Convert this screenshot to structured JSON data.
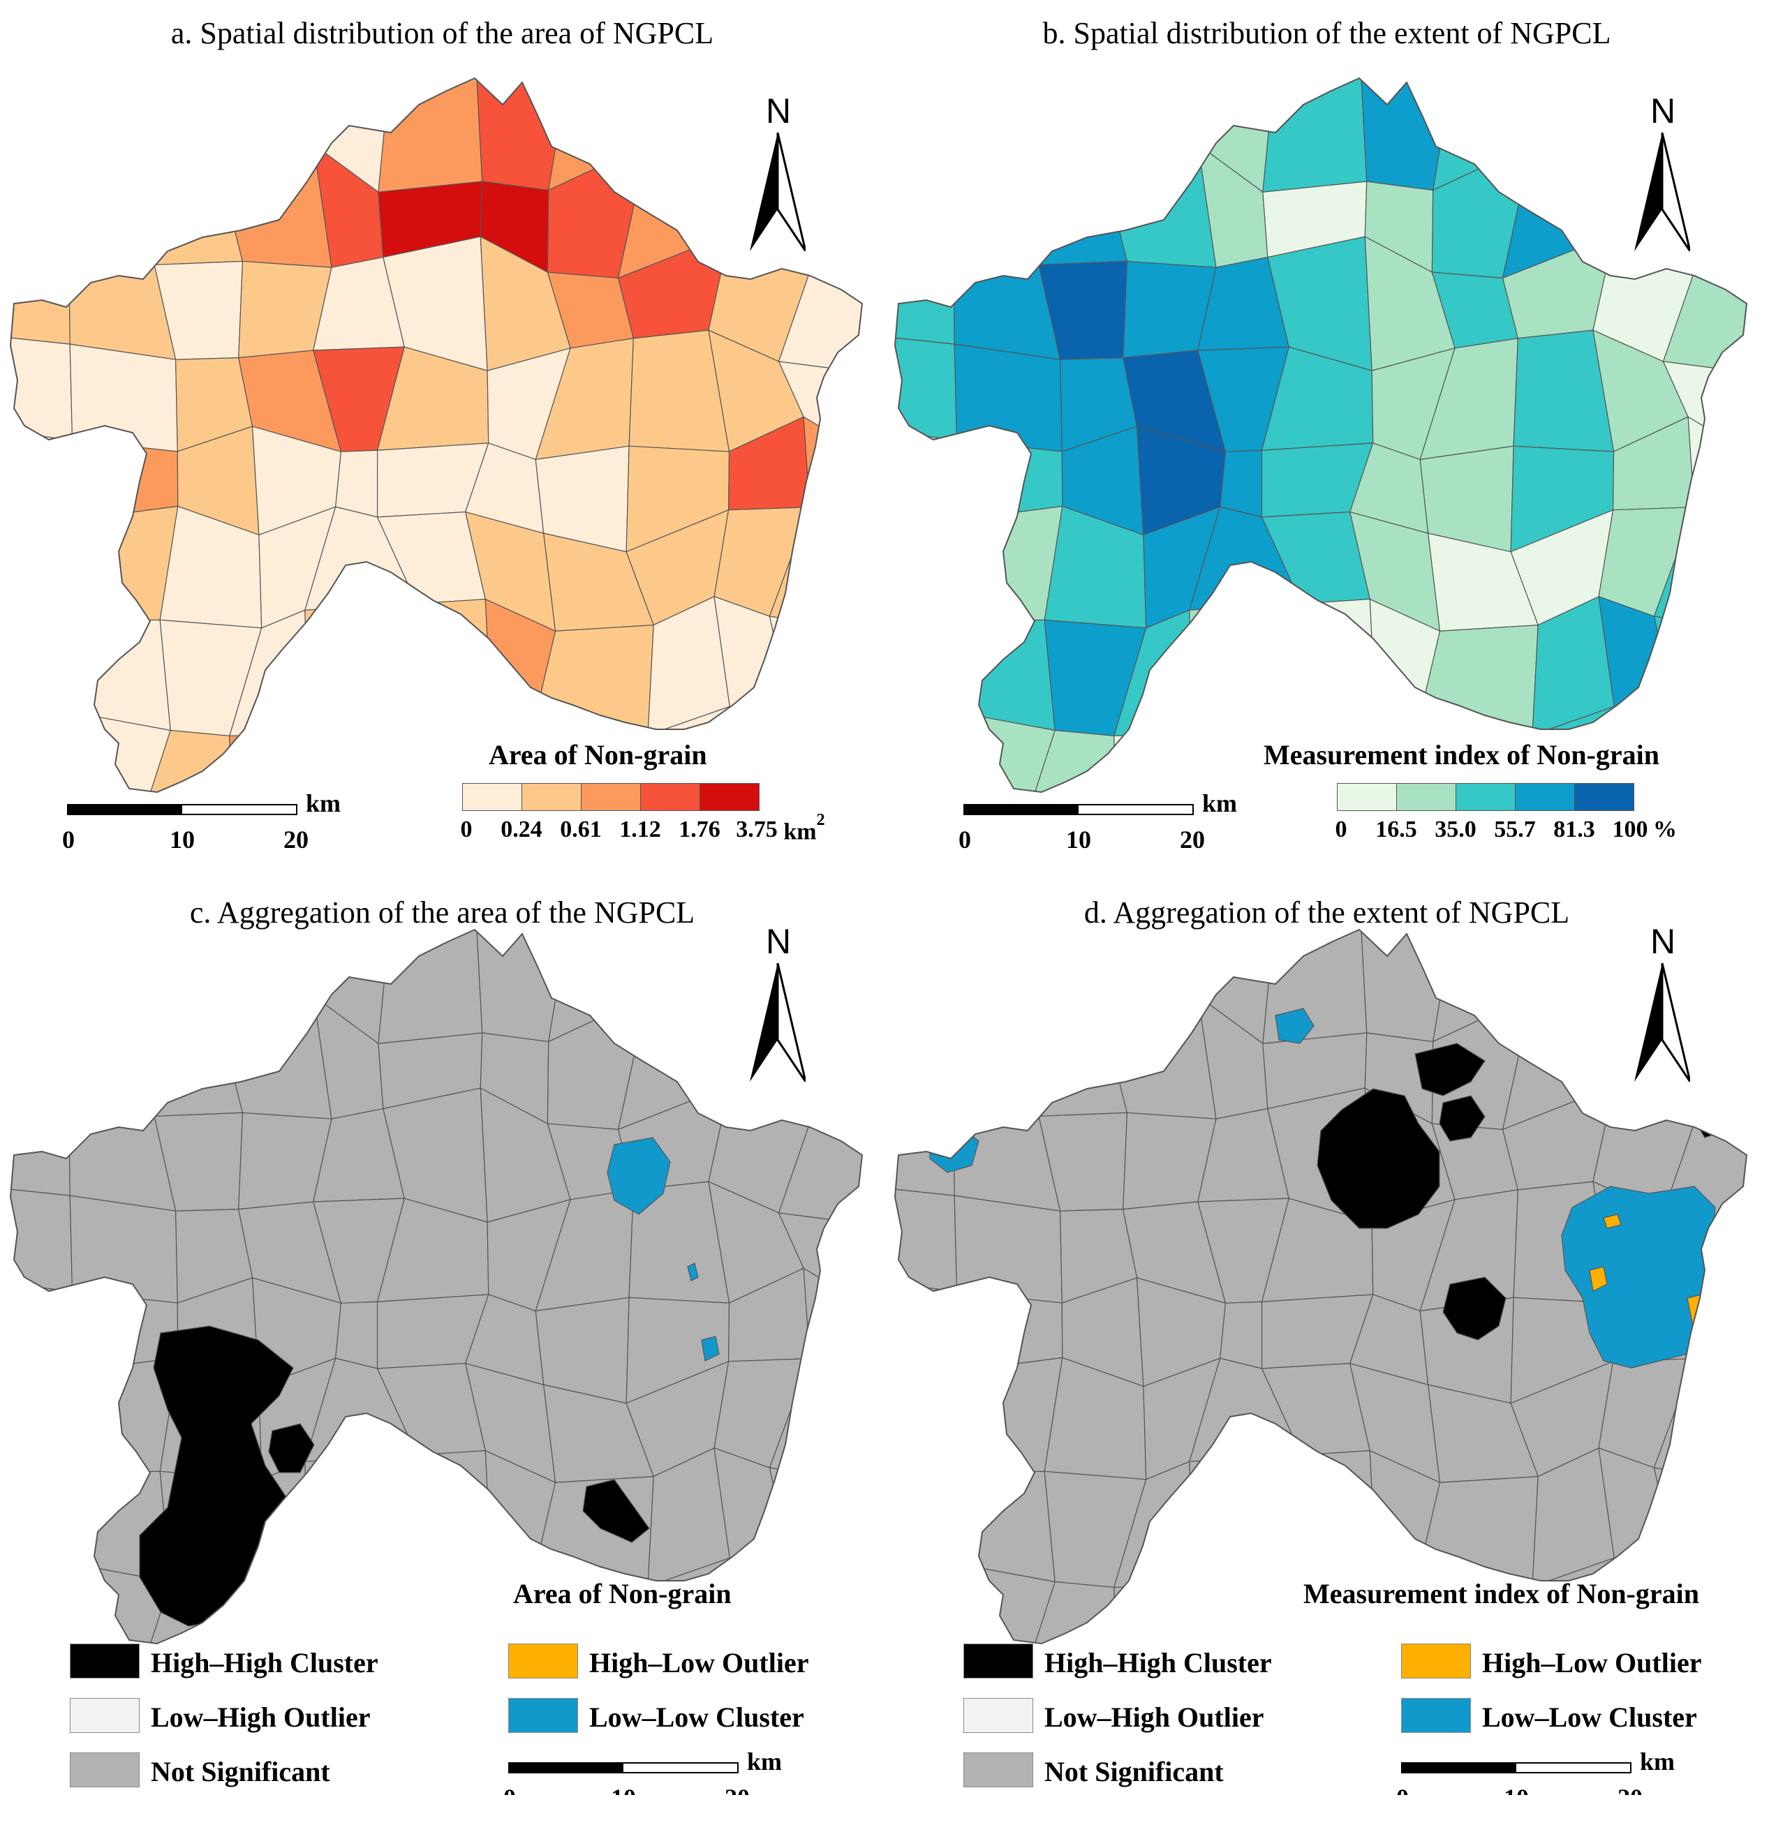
{
  "panels": {
    "a": {
      "title": "a. Spatial distribution of the area of NGPCL",
      "legend_title": "Area of Non-grain",
      "breaks": [
        "0",
        "0.24",
        "0.61",
        "1.12",
        "1.76",
        "3.75"
      ],
      "unit": "km",
      "unit_sup": "2",
      "colors": [
        "#feeed9",
        "#fdc98a",
        "#fc9a5e",
        "#f6533a",
        "#d40d0d"
      ],
      "region_classes": [
        2,
        1,
        1,
        0,
        0,
        2,
        3,
        2,
        2,
        1,
        1,
        0,
        0,
        1,
        2,
        3,
        4,
        4,
        3,
        2,
        1,
        1,
        1,
        1,
        0,
        1,
        0,
        0,
        1,
        2,
        3,
        1,
        0,
        0,
        0,
        1,
        2,
        3,
        1,
        0,
        1,
        1,
        1,
        0,
        0,
        2,
        1,
        0,
        0,
        0,
        0,
        0,
        1,
        3,
        2,
        1,
        1,
        0,
        0,
        0,
        0,
        1,
        1,
        1,
        1,
        1,
        0,
        0,
        0,
        0,
        1,
        1,
        2,
        1,
        0,
        0,
        0,
        0,
        0,
        1,
        2,
        3,
        2,
        1,
        1,
        0,
        0,
        0
      ]
    },
    "b": {
      "title": "b. Spatial distribution of the extent of NGPCL",
      "legend_title": "Measurement index of Non-grain",
      "breaks": [
        "0",
        "16.5",
        "35.0",
        "55.7",
        "81.3",
        "100"
      ],
      "unit": "%",
      "colors": [
        "#eaf7e8",
        "#a8e2c3",
        "#35c8c6",
        "#0d9ecc",
        "#0a63ad"
      ],
      "region_classes": [
        0,
        1,
        2,
        1,
        1,
        2,
        3,
        2,
        1,
        1,
        2,
        3,
        4,
        3,
        2,
        1,
        0,
        1,
        2,
        3,
        2,
        1,
        2,
        3,
        4,
        3,
        3,
        2,
        1,
        2,
        1,
        0,
        1,
        2,
        3,
        3,
        4,
        3,
        2,
        1,
        1,
        2,
        1,
        0,
        1,
        2,
        3,
        4,
        3,
        2,
        1,
        1,
        2,
        1,
        0,
        0,
        1,
        2,
        3,
        3,
        2,
        1,
        0,
        0,
        1,
        2,
        1,
        2,
        3,
        2,
        1,
        0,
        0,
        1,
        2,
        3,
        2,
        1,
        1,
        1,
        0,
        0,
        1,
        2,
        3,
        2,
        1,
        0
      ]
    },
    "c": {
      "title": "c. Aggregation of the area of the NGPCL",
      "legend_title": "Area of Non-grain",
      "categories": [
        {
          "label": "High–High Cluster",
          "color": "#000000"
        },
        {
          "label": "Low–High Outlier",
          "color": "#f2f2f2"
        },
        {
          "label": "Not Significant",
          "color": "#b2b2b2"
        },
        {
          "label": "High–Low Outlier",
          "color": "#ffb000"
        },
        {
          "label": "Low–Low Cluster",
          "color": "#1199cc"
        }
      ]
    },
    "d": {
      "title": "d. Aggregation of the extent of NGPCL",
      "legend_title": "Measurement index of Non-grain",
      "categories": [
        {
          "label": "High–High Cluster",
          "color": "#000000"
        },
        {
          "label": "Low–High Outlier",
          "color": "#f2f2f2"
        },
        {
          "label": "Not Significant",
          "color": "#b2b2b2"
        },
        {
          "label": "High–Low Outlier",
          "color": "#ffb000"
        },
        {
          "label": "Low–Low Cluster",
          "color": "#1199cc"
        }
      ]
    }
  },
  "north_label": "N",
  "scalebar": {
    "unit": "km",
    "ticks": [
      "0",
      "10",
      "20"
    ]
  },
  "outline_color": "#555555"
}
